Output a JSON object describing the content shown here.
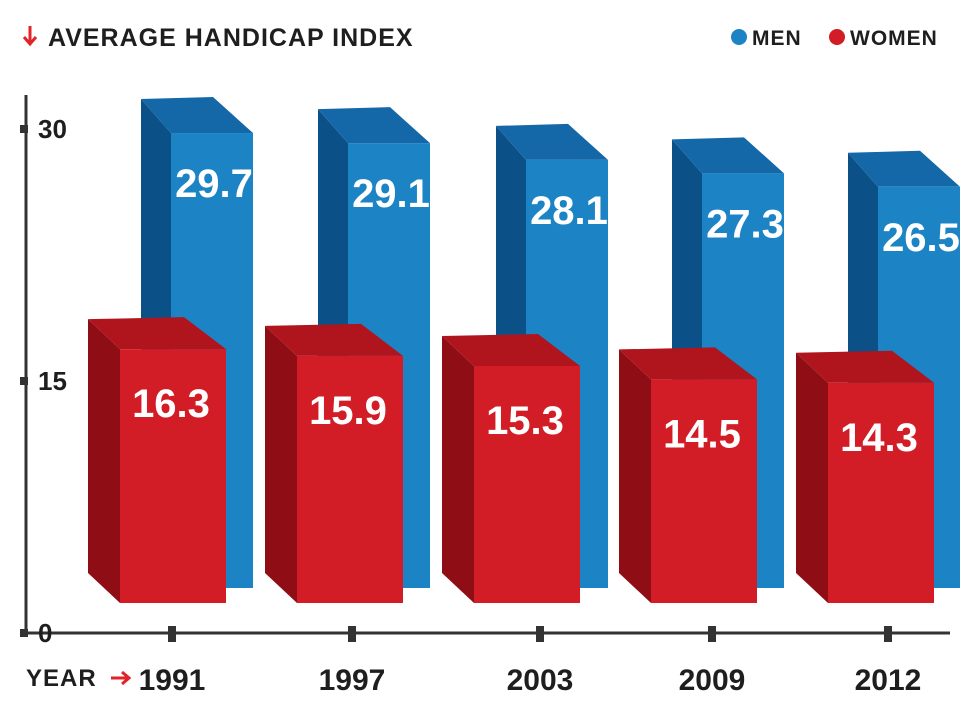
{
  "colors": {
    "men_front": "#1c83c5",
    "men_side": "#0b5187",
    "men_top": "#1468a8",
    "women_front": "#d21d26",
    "women_side": "#8f0e15",
    "women_top": "#b0141c",
    "arrow": "#e2232a",
    "axis": "#333333"
  },
  "chart_data": {
    "type": "bar",
    "title": "AVERAGE HANDICAP INDEX",
    "xlabel": "YEAR",
    "categories": [
      "1991",
      "1997",
      "2003",
      "2009",
      "2012"
    ],
    "series": [
      {
        "name": "MEN",
        "values": [
          29.7,
          29.1,
          28.1,
          27.3,
          26.5
        ],
        "labels": [
          "29.7",
          "29.1",
          "28.1",
          "27.3",
          "26.5"
        ]
      },
      {
        "name": "WOMEN",
        "values": [
          16.3,
          15.9,
          15.3,
          14.5,
          14.3
        ],
        "labels": [
          "16.3",
          "15.9",
          "15.3",
          "14.5",
          "14.3"
        ]
      }
    ],
    "yticks": [
      "0",
      "15",
      "30"
    ],
    "ylim": [
      0,
      30
    ],
    "legend": "top-right",
    "grid": false
  }
}
